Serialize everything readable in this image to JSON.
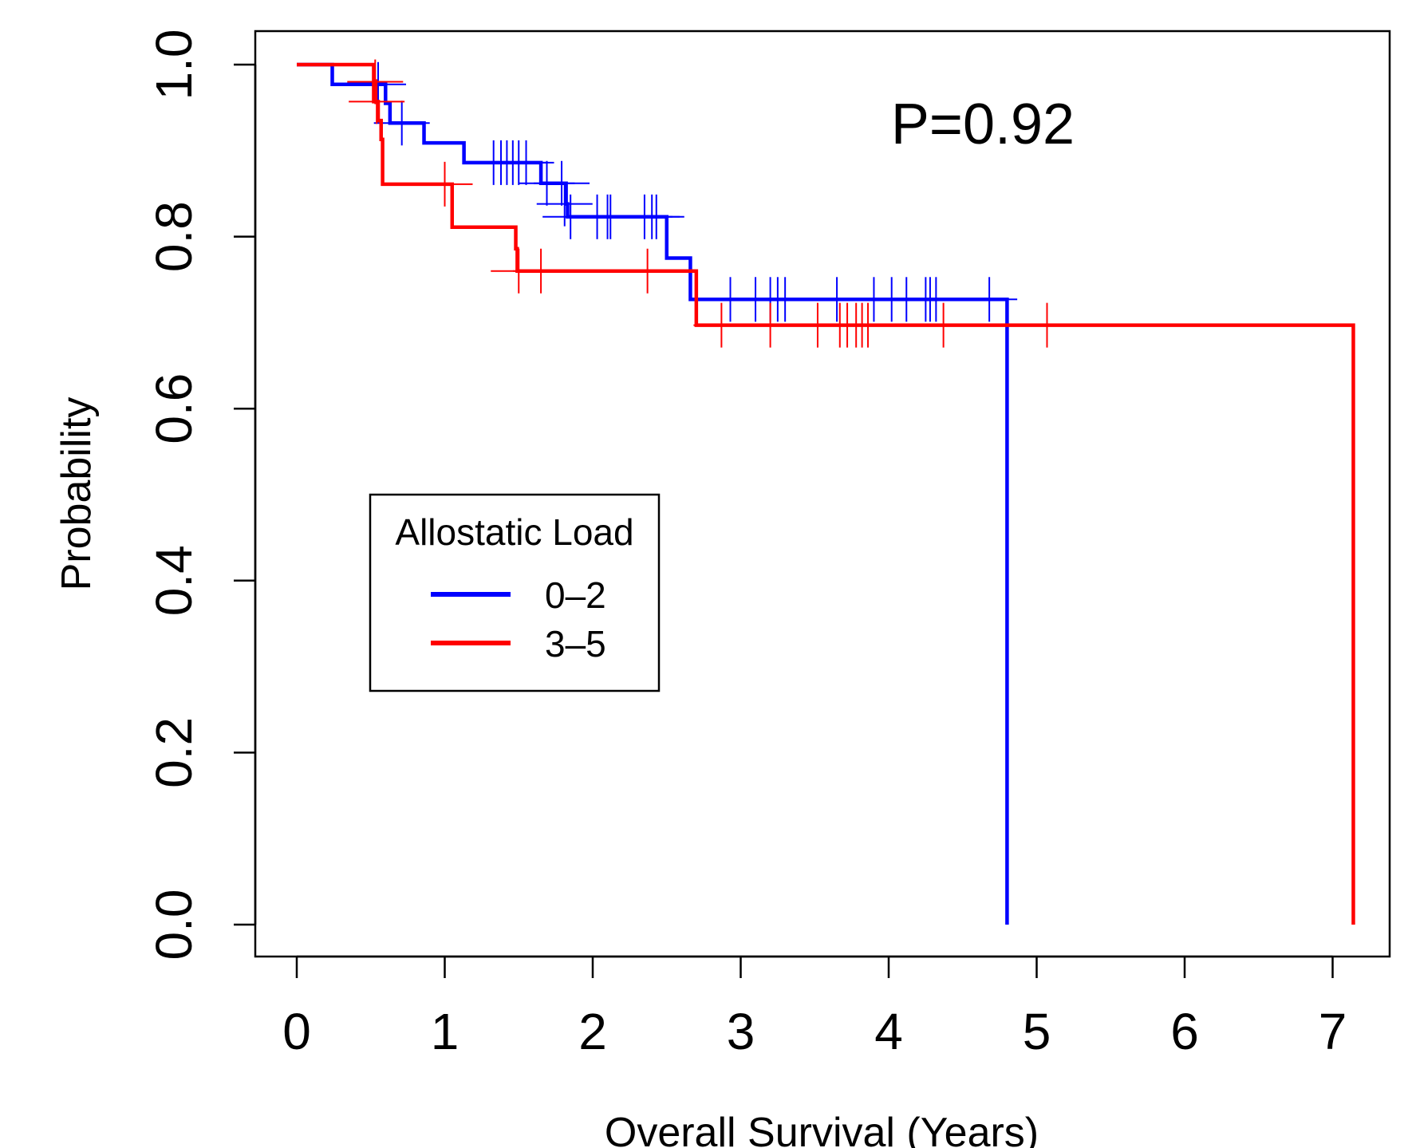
{
  "chart_data": {
    "type": "line",
    "subtype": "kaplan-meier",
    "xlabel": "Overall Survival (Years)",
    "ylabel": "Probability",
    "xlim": [
      0,
      7
    ],
    "ylim": [
      0,
      1
    ],
    "x_ticks": [
      "0",
      "1",
      "2",
      "3",
      "4",
      "5",
      "6",
      "7"
    ],
    "y_ticks": [
      "0.0",
      "0.2",
      "0.4",
      "0.6",
      "0.8",
      "1.0"
    ],
    "annotation": "P=0.92",
    "grid": false,
    "legend": {
      "title": "Allostatic Load",
      "placement": "center-left"
    },
    "series": [
      {
        "name": "0–2",
        "color": "#0000ff",
        "steps": [
          [
            0,
            1.0
          ],
          [
            0.24,
            0.977
          ],
          [
            0.6,
            0.955
          ],
          [
            0.63,
            0.932
          ],
          [
            0.86,
            0.909
          ],
          [
            1.13,
            0.886
          ],
          [
            1.65,
            0.862
          ],
          [
            1.82,
            0.838
          ],
          [
            1.83,
            0.823
          ],
          [
            2.5,
            0.775
          ],
          [
            2.66,
            0.727
          ],
          [
            4.8,
            0.727
          ],
          [
            4.8,
            0.0
          ]
        ],
        "censors": [
          [
            0.55,
            0.977
          ],
          [
            0.71,
            0.932
          ],
          [
            1.33,
            0.886
          ],
          [
            1.38,
            0.886
          ],
          [
            1.42,
            0.886
          ],
          [
            1.46,
            0.886
          ],
          [
            1.5,
            0.886
          ],
          [
            1.55,
            0.886
          ],
          [
            1.69,
            0.862
          ],
          [
            1.79,
            0.862
          ],
          [
            1.81,
            0.838
          ],
          [
            1.85,
            0.823
          ],
          [
            2.03,
            0.823
          ],
          [
            2.1,
            0.823
          ],
          [
            2.12,
            0.823
          ],
          [
            2.35,
            0.823
          ],
          [
            2.4,
            0.823
          ],
          [
            2.43,
            0.823
          ],
          [
            2.93,
            0.727
          ],
          [
            3.1,
            0.727
          ],
          [
            3.2,
            0.727
          ],
          [
            3.25,
            0.727
          ],
          [
            3.3,
            0.727
          ],
          [
            3.65,
            0.727
          ],
          [
            3.9,
            0.727
          ],
          [
            4.02,
            0.727
          ],
          [
            4.12,
            0.727
          ],
          [
            4.25,
            0.727
          ],
          [
            4.28,
            0.727
          ],
          [
            4.32,
            0.727
          ],
          [
            4.68,
            0.727
          ]
        ]
      },
      {
        "name": "3–5",
        "color": "#ff0000",
        "steps": [
          [
            0,
            1.0
          ],
          [
            0.52,
            0.957
          ],
          [
            0.55,
            0.935
          ],
          [
            0.57,
            0.913
          ],
          [
            0.58,
            0.861
          ],
          [
            1.05,
            0.811
          ],
          [
            1.48,
            0.786
          ],
          [
            1.49,
            0.76
          ],
          [
            2.7,
            0.697
          ],
          [
            7.14,
            0.697
          ],
          [
            7.14,
            0.0
          ]
        ],
        "censors": [
          [
            0.53,
            0.98
          ],
          [
            0.54,
            0.957
          ],
          [
            1.0,
            0.861
          ],
          [
            1.5,
            0.76
          ],
          [
            1.65,
            0.76
          ],
          [
            2.37,
            0.76
          ],
          [
            2.87,
            0.697
          ],
          [
            3.2,
            0.697
          ],
          [
            3.52,
            0.697
          ],
          [
            3.67,
            0.697
          ],
          [
            3.72,
            0.697
          ],
          [
            3.78,
            0.697
          ],
          [
            3.82,
            0.697
          ],
          [
            3.86,
            0.697
          ],
          [
            4.37,
            0.697
          ],
          [
            5.07,
            0.697
          ]
        ]
      }
    ]
  }
}
